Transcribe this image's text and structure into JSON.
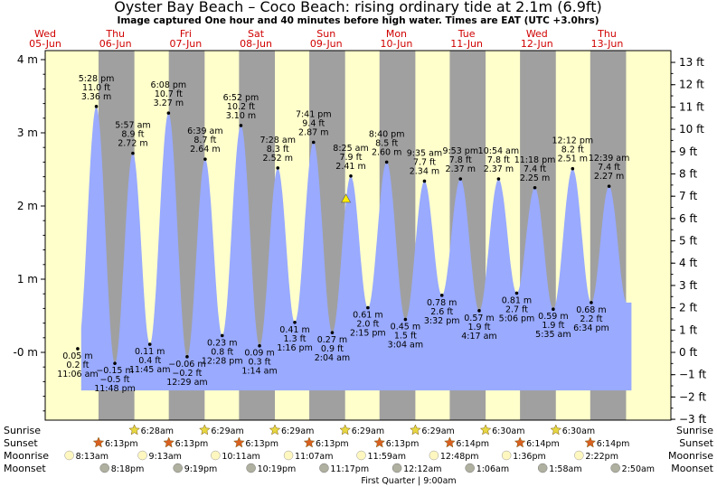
{
  "title": "Oyster Bay Beach – Coco Beach: rising  ordinary tide at 2.1m (6.9ft)",
  "subtitle": "Image captured One hour and 40 minutes before high water. Times are EAT (UTC +3.0hrs)",
  "days": [
    {
      "name": "Wed",
      "date": "05-Jun"
    },
    {
      "name": "Thu",
      "date": "06-Jun"
    },
    {
      "name": "Fri",
      "date": "07-Jun"
    },
    {
      "name": "Sat",
      "date": "08-Jun"
    },
    {
      "name": "Sun",
      "date": "09-Jun"
    },
    {
      "name": "Mon",
      "date": "10-Jun"
    },
    {
      "name": "Tue",
      "date": "11-Jun"
    },
    {
      "name": "Wed",
      "date": "12-Jun"
    },
    {
      "name": "Thu",
      "date": "13-Jun"
    }
  ],
  "colors": {
    "day_background": "#ffffcc",
    "night_background": "#a0a0a0",
    "tide_fill": "#99aaff",
    "day_label": "#d00000",
    "current_marker": "#ffee00",
    "sunrise": "#e8d840",
    "sunset": "#d96020",
    "moonrise": "#fff7c0",
    "moonset": "#b0b0a0"
  },
  "chart_data": {
    "type": "area",
    "x_unit": "hours since 00:00 on 05-Jun (EAT)",
    "y_left": {
      "label": "m",
      "ticks": [
        "-0 m",
        "1 m",
        "2 m",
        "3 m",
        "4 m"
      ],
      "range": [
        -1.3,
        4.1
      ]
    },
    "y_right": {
      "label": "ft",
      "ticks": [
        "−3 ft",
        "−2 ft",
        "−1 ft",
        "0 ft",
        "1 ft",
        "2 ft",
        "3 ft",
        "4 ft",
        "5 ft",
        "6 ft",
        "7 ft",
        "8 ft",
        "9 ft",
        "10 ft",
        "11 ft",
        "12 ft",
        "13 ft"
      ]
    },
    "current": {
      "label": "rising ordinary tide at 2.1m (6.9ft)",
      "value_m": 2.1
    },
    "tides": [
      {
        "type": "low",
        "time": "11:06 am",
        "m": "0.05 m",
        "ft": "0.2 ft",
        "hour": 11.1,
        "value": 0.05
      },
      {
        "type": "high",
        "time": "5:28 pm",
        "m": "3.36 m",
        "ft": "11.0 ft",
        "hour": 17.47,
        "value": 3.36
      },
      {
        "type": "low",
        "time": "11:48 pm",
        "m": "−0.15 m",
        "ft": "−0.5 ft",
        "hour": 23.8,
        "value": -0.15
      },
      {
        "type": "high",
        "time": "5:57 am",
        "m": "2.72 m",
        "ft": "8.9 ft",
        "hour": 29.95,
        "value": 2.72
      },
      {
        "type": "low",
        "time": "11:45 am",
        "m": "0.11 m",
        "ft": "0.4 ft",
        "hour": 35.75,
        "value": 0.11
      },
      {
        "type": "high",
        "time": "6:08 pm",
        "m": "3.27 m",
        "ft": "10.7 ft",
        "hour": 42.13,
        "value": 3.27
      },
      {
        "type": "low",
        "time": "12:29 am",
        "m": "−0.06 m",
        "ft": "−0.2 ft",
        "hour": 48.48,
        "value": -0.06
      },
      {
        "type": "high",
        "time": "6:39 am",
        "m": "2.64 m",
        "ft": "8.7 ft",
        "hour": 54.65,
        "value": 2.64
      },
      {
        "type": "low",
        "time": "12:28 pm",
        "m": "0.23 m",
        "ft": "0.8 ft",
        "hour": 60.47,
        "value": 0.23
      },
      {
        "type": "high",
        "time": "6:52 pm",
        "m": "3.10 m",
        "ft": "10.2 ft",
        "hour": 66.87,
        "value": 3.1
      },
      {
        "type": "low",
        "time": "1:14 am",
        "m": "0.09 m",
        "ft": "0.3 ft",
        "hour": 73.23,
        "value": 0.09
      },
      {
        "type": "high",
        "time": "7:28 am",
        "m": "2.52 m",
        "ft": "8.3 ft",
        "hour": 79.47,
        "value": 2.52
      },
      {
        "type": "low",
        "time": "1:16 pm",
        "m": "0.41 m",
        "ft": "1.3 ft",
        "hour": 85.27,
        "value": 0.41
      },
      {
        "type": "high",
        "time": "7:41 pm",
        "m": "2.87 m",
        "ft": "9.4 ft",
        "hour": 91.68,
        "value": 2.87
      },
      {
        "type": "low",
        "time": "2:04 am",
        "m": "0.27 m",
        "ft": "0.9 ft",
        "hour": 98.07,
        "value": 0.27
      },
      {
        "type": "high",
        "time": "8:25 am",
        "m": "2.41 m",
        "ft": "7.9 ft",
        "hour": 104.42,
        "value": 2.41
      },
      {
        "type": "low",
        "time": "2:15 pm",
        "m": "0.61 m",
        "ft": "2.0 ft",
        "hour": 110.25,
        "value": 0.61
      },
      {
        "type": "high",
        "time": "8:40 pm",
        "m": "2.60 m",
        "ft": "8.5 ft",
        "hour": 116.67,
        "value": 2.6
      },
      {
        "type": "low",
        "time": "3:04 am",
        "m": "0.45 m",
        "ft": "1.5 ft",
        "hour": 123.07,
        "value": 0.45
      },
      {
        "type": "high",
        "time": "9:35 am",
        "m": "2.34 m",
        "ft": "7.7 ft",
        "hour": 129.58,
        "value": 2.34
      },
      {
        "type": "low",
        "time": "3:32 pm",
        "m": "0.78 m",
        "ft": "2.6 ft",
        "hour": 135.53,
        "value": 0.78
      },
      {
        "type": "high",
        "time": "9:53 pm",
        "m": "2.37 m",
        "ft": "7.8 ft",
        "hour": 141.88,
        "value": 2.37
      },
      {
        "type": "low",
        "time": "4:17 am",
        "m": "0.57 m",
        "ft": "1.9 ft",
        "hour": 148.28,
        "value": 0.57
      },
      {
        "type": "high",
        "time": "10:54 am",
        "m": "2.37 m",
        "ft": "7.8 ft",
        "hour": 154.9,
        "value": 2.37
      },
      {
        "type": "low",
        "time": "5:06 pm",
        "m": "0.81 m",
        "ft": "2.7 ft",
        "hour": 161.1,
        "value": 0.81
      },
      {
        "type": "high",
        "time": "11:18 pm",
        "m": "2.25 m",
        "ft": "7.4 ft",
        "hour": 167.3,
        "value": 2.25
      },
      {
        "type": "low",
        "time": "5:35 am",
        "m": "0.59 m",
        "ft": "1.9 ft",
        "hour": 173.58,
        "value": 0.59
      },
      {
        "type": "high",
        "time": "12:12 pm",
        "m": "2.51 m",
        "ft": "8.2 ft",
        "hour": 180.2,
        "value": 2.51
      },
      {
        "type": "low",
        "time": "6:34 pm",
        "m": "0.68 m",
        "ft": "2.2 ft",
        "hour": 186.57,
        "value": 0.68
      },
      {
        "type": "high",
        "time": "12:39 am",
        "m": "2.27 m",
        "ft": "7.4 ft",
        "hour": 192.65,
        "value": 2.27
      }
    ]
  },
  "rows": {
    "sunrise_label": "Sunrise",
    "sunset_label": "Sunset",
    "moonrise_label": "Moonrise",
    "moonset_label": "Moonset",
    "sunrise": [
      "6:28am",
      "6:29am",
      "6:29am",
      "6:29am",
      "6:29am",
      "6:30am",
      "6:30am"
    ],
    "sunset": [
      "6:13pm",
      "6:13pm",
      "6:13pm",
      "6:13pm",
      "6:13pm",
      "6:14pm",
      "6:14pm",
      "6:14pm"
    ],
    "moonrise": [
      "8:13am",
      "9:13am",
      "10:11am",
      "11:07am",
      "11:59am",
      "12:48pm",
      "1:36pm",
      "2:22pm"
    ],
    "moonset": [
      "8:18pm",
      "9:19pm",
      "10:19pm",
      "11:17pm",
      "12:12am",
      "1:06am",
      "1:58am",
      "2:50am"
    ],
    "moon_phase": "First Quarter | 9:00am"
  }
}
